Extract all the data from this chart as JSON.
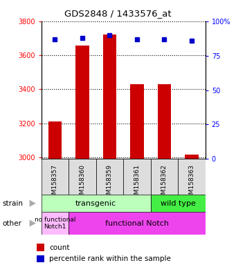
{
  "title": "GDS2848 / 1433576_at",
  "samples": [
    "GSM158357",
    "GSM158360",
    "GSM158359",
    "GSM158361",
    "GSM158362",
    "GSM158363"
  ],
  "counts": [
    3210,
    3655,
    3720,
    3430,
    3430,
    3015
  ],
  "percentiles": [
    87,
    88,
    90,
    87,
    87,
    86
  ],
  "ylim_left": [
    2990,
    3800
  ],
  "ylim_right": [
    0,
    100
  ],
  "yticks_left": [
    3000,
    3200,
    3400,
    3600,
    3800
  ],
  "yticks_right": [
    0,
    25,
    50,
    75,
    100
  ],
  "bar_color": "#cc0000",
  "dot_color": "#0000cc",
  "strain_transgenic_color": "#bbffbb",
  "strain_wildtype_color": "#44ee44",
  "other_nofunctional_color": "#ffbbff",
  "other_functional_color": "#ee44ee",
  "strain_label": "strain",
  "other_label": "other",
  "strain_transgenic_text": "transgenic",
  "strain_wildtype_text": "wild type",
  "other_nofunctional_text": "no functional\nNotch1",
  "other_functional_text": "functional Notch",
  "legend_count": "count",
  "legend_percentile": "percentile rank within the sample",
  "n_transgenic": 4,
  "n_wildtype": 2,
  "n_nofunctional": 1,
  "n_functional": 5
}
